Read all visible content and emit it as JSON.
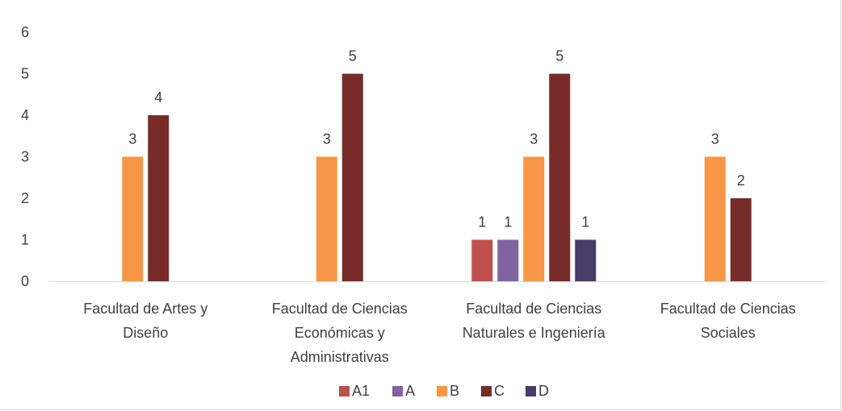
{
  "chart_data": {
    "type": "bar",
    "title": "",
    "xlabel": "",
    "ylabel": "",
    "ylim": [
      0,
      6
    ],
    "yticks": [
      0,
      1,
      2,
      3,
      4,
      5,
      6
    ],
    "grid": false,
    "legend_position": "bottom",
    "categories": [
      [
        "Facultad de Artes y",
        "Diseño"
      ],
      [
        "Facultad de Ciencias",
        "Económicas y",
        "Administrativas"
      ],
      [
        "Facultad de Ciencias",
        "Naturales e Ingeniería"
      ],
      [
        "Facultad de Ciencias",
        "Sociales"
      ]
    ],
    "series": [
      {
        "name": "A1",
        "color": "#c0504d",
        "values": [
          null,
          null,
          1,
          null
        ]
      },
      {
        "name": "A",
        "color": "#8064a2",
        "values": [
          null,
          null,
          1,
          null
        ]
      },
      {
        "name": "B",
        "color": "#f79646",
        "values": [
          3,
          3,
          3,
          3
        ]
      },
      {
        "name": "C",
        "color": "#772c2a",
        "values": [
          4,
          5,
          5,
          2
        ]
      },
      {
        "name": "D",
        "color": "#4a3c68",
        "values": [
          null,
          null,
          1,
          null
        ]
      }
    ]
  }
}
